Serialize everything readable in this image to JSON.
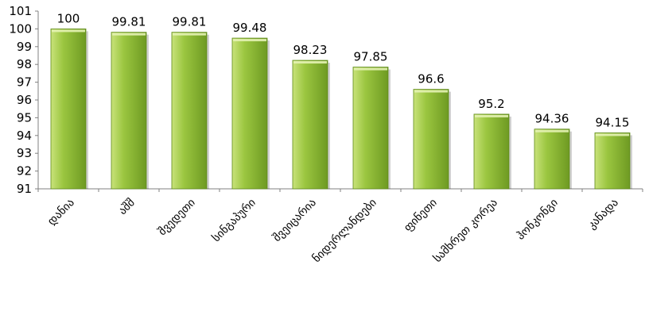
{
  "chart_data": {
    "type": "bar",
    "categories": [
      "დანია",
      "აშშ",
      "შვედეთი",
      "სინგაპური",
      "შვეიცარია",
      "ნიდერლანდები",
      "ფინეთი",
      "სამხრეთ კორეა",
      "ჰონკონგი",
      "კანადა"
    ],
    "values": [
      100,
      99.81,
      99.81,
      99.48,
      98.23,
      97.85,
      96.6,
      95.2,
      94.36,
      94.15
    ],
    "data_labels": [
      "100",
      "99.81",
      "99.81",
      "99.48",
      "98.23",
      "97.85",
      "96.6",
      "95.2",
      "94.36",
      "94.15"
    ],
    "ylim": [
      91,
      101
    ],
    "yticks": [
      "91",
      "92",
      "93",
      "94",
      "95",
      "96",
      "97",
      "98",
      "99",
      "100",
      "101"
    ],
    "grid": false,
    "legend": "none",
    "colors": {
      "bar_light": "#c8e27a",
      "bar_mid": "#9bc640",
      "bar_dark": "#6e9a22",
      "bar_edge": "#5f8a1a",
      "axis": "#808080"
    }
  }
}
